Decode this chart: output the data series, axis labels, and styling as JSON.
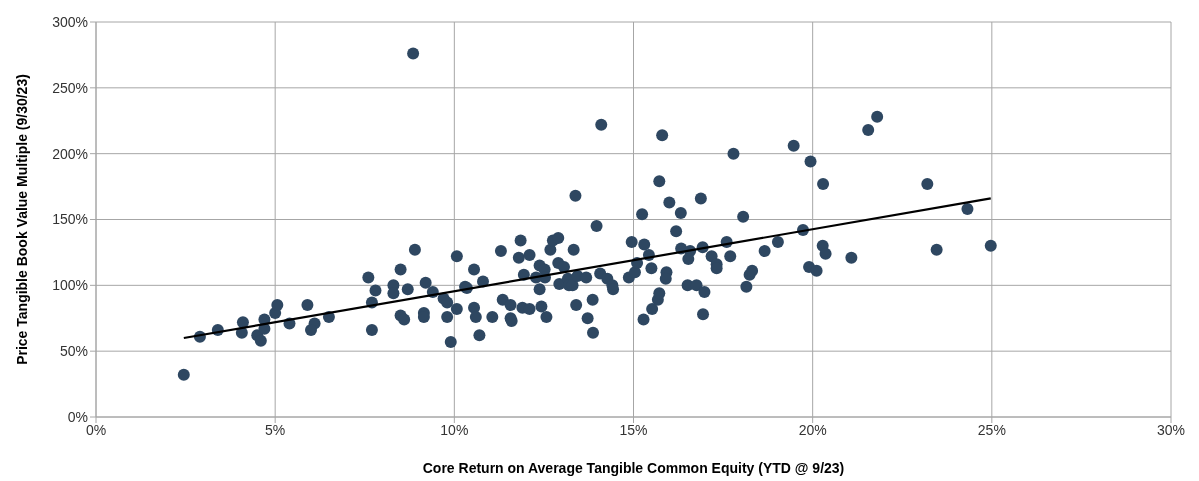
{
  "chart_data": {
    "type": "scatter",
    "xlabel": "Core Return on Average Tangible Common Equity (YTD @ 9/23)",
    "ylabel": "Price Tangible Book Value Multiple (9/30/23)",
    "xlim": [
      0,
      30
    ],
    "xticks": [
      {
        "value": 0,
        "label": "0%"
      },
      {
        "value": 5,
        "label": "5%"
      },
      {
        "value": 10,
        "label": "10%"
      },
      {
        "value": 15,
        "label": "15%"
      },
      {
        "value": 20,
        "label": "20%"
      },
      {
        "value": 25,
        "label": "25%"
      },
      {
        "value": 30,
        "label": "30%"
      }
    ],
    "ylim": [
      0,
      300
    ],
    "yticks": [
      {
        "value": 0,
        "label": "0%"
      },
      {
        "value": 50,
        "label": "50%"
      },
      {
        "value": 100,
        "label": "100%"
      },
      {
        "value": 150,
        "label": "150%"
      },
      {
        "value": 200,
        "label": "200%"
      },
      {
        "value": 250,
        "label": "250%"
      },
      {
        "value": 300,
        "label": "300%"
      }
    ],
    "grid": true,
    "legend": false,
    "series": [
      {
        "color": "#2e4761",
        "marker": "circle",
        "x": [
          2.45,
          2.9,
          3.4,
          4.1,
          4.07,
          4.5,
          4.6,
          4.7,
          4.7,
          5.0,
          5.06,
          5.4,
          5.9,
          6.1,
          6.0,
          6.5,
          7.6,
          7.8,
          7.7,
          7.7,
          8.5,
          8.3,
          8.3,
          8.7,
          8.9,
          8.85,
          8.5,
          8.6,
          9.2,
          9.15,
          9.15,
          9.4,
          9.7,
          9.8,
          9.8,
          9.9,
          10.07,
          10.07,
          10.3,
          10.35,
          10.55,
          10.8,
          10.55,
          10.6,
          10.7,
          11.06,
          11.3,
          11.35,
          11.57,
          11.6,
          11.57,
          11.85,
          11.8,
          11.94,
          11.9,
          12.1,
          12.1,
          12.28,
          12.38,
          12.38,
          12.43,
          12.52,
          12.57,
          12.53,
          12.68,
          12.75,
          12.9,
          12.9,
          13.06,
          12.93,
          13.17,
          13.2,
          13.3,
          13.33,
          13.38,
          13.4,
          13.44,
          13.68,
          13.86,
          13.72,
          13.87,
          13.97,
          14.1,
          14.07,
          14.27,
          14.41,
          14.43,
          14.87,
          15.04,
          14.95,
          15.1,
          15.24,
          15.3,
          15.43,
          15.5,
          15.28,
          15.52,
          15.68,
          15.72,
          15.72,
          15.8,
          15.92,
          15.9,
          16.0,
          16.32,
          16.19,
          16.33,
          16.58,
          16.53,
          16.51,
          16.76,
          16.98,
          16.88,
          16.93,
          16.94,
          17.18,
          17.32,
          17.32,
          17.6,
          17.7,
          17.79,
          18.06,
          18.15,
          18.24,
          18.31,
          18.66,
          19.03,
          19.47,
          19.73,
          19.94,
          19.9,
          20.29,
          20.28,
          20.36,
          20.11,
          21.08,
          21.55,
          21.8,
          23.2,
          23.46,
          24.32,
          24.97
        ],
        "values": [
          32,
          61,
          66,
          72,
          64,
          62,
          58,
          74,
          67,
          79,
          85,
          71,
          85,
          71,
          66,
          76,
          106,
          96,
          87,
          66,
          112,
          100,
          94,
          97,
          127,
          276,
          77,
          74,
          102,
          79,
          76,
          95,
          90,
          87,
          76,
          57,
          122,
          82,
          99,
          98,
          112,
          103,
          83,
          76,
          62,
          76,
          126,
          89,
          85,
          73,
          75,
          134,
          121,
          108,
          83,
          123,
          82,
          106,
          115,
          97,
          84,
          112,
          76,
          106,
          127,
          134,
          136,
          117,
          114,
          101,
          105,
          100,
          100,
          127,
          168,
          85,
          107,
          106,
          89,
          75,
          64,
          145,
          222,
          109,
          105,
          100,
          97,
          106,
          110,
          133,
          117,
          154,
          131,
          123,
          113,
          74,
          82,
          89,
          94,
          179,
          214,
          110,
          105,
          163,
          155,
          141,
          128,
          126,
          120,
          100,
          100,
          95,
          166,
          129,
          78,
          122,
          116,
          113,
          133,
          122,
          200,
          152,
          99,
          108,
          111,
          126,
          133,
          206,
          142,
          194,
          114,
          177,
          130,
          124,
          111,
          121,
          218,
          228,
          177,
          127,
          158,
          130
        ]
      },
      {
        "type": "line",
        "color": "#000000",
        "line_style": "solid",
        "x": [
          2.45,
          24.97
        ],
        "values": [
          60,
          166
        ]
      }
    ]
  }
}
